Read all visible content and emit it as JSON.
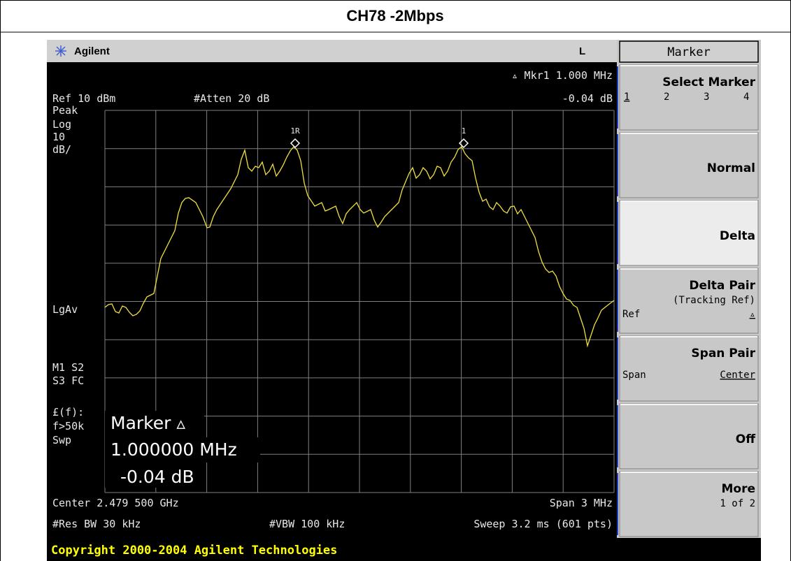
{
  "header": {
    "title": "CH78 -2Mbps"
  },
  "topbar": {
    "brand": "Agilent",
    "status": "L"
  },
  "screen": {
    "mkr_readout": "▵ Mkr1  1.000 MHz",
    "mkr_delta": "-0.04 dB",
    "ref": "Ref 10 dBm",
    "atten": "#Atten 20 dB",
    "left_labels": [
      "Peak",
      "Log",
      "10",
      "dB/",
      "LgAv",
      "M1  S2",
      "S3  FC",
      "£(f):",
      "f>50k",
      "Swp"
    ],
    "markers": [
      "1R",
      "1"
    ],
    "marker_box": {
      "title": "Marker ▵",
      "freq": "1.000000 MHz",
      "delta": "-0.04 dB"
    },
    "center": "Center 2.479 500 GHz",
    "span": "Span 3 MHz",
    "rbw": "#Res BW 30 kHz",
    "vbw": "#VBW 100 kHz",
    "sweep": "Sweep 3.2 ms (601 pts)"
  },
  "softkeys": {
    "title": "Marker",
    "keys": [
      {
        "label": "Select Marker",
        "options": [
          "1",
          "2",
          "3",
          "4"
        ]
      },
      {
        "label": "Normal"
      },
      {
        "label": "Delta"
      },
      {
        "label": "Delta Pair",
        "sub": "(Tracking Ref)",
        "left": "Ref",
        "right": "▵"
      },
      {
        "label": "Span Pair",
        "left": "Span",
        "right": "Center"
      },
      {
        "label": "Off"
      },
      {
        "label": "More",
        "sub": "1 of 2"
      }
    ]
  },
  "footer": {
    "copyright": "Copyright 2000-2004 Agilent Technologies"
  }
}
